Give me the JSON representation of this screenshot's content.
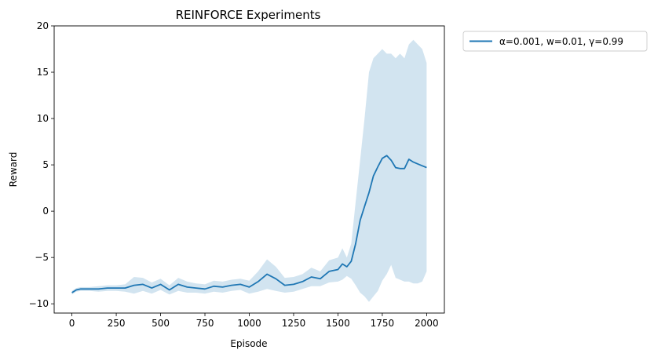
{
  "chart_data": {
    "type": "line",
    "title": "REINFORCE Experiments",
    "xlabel": "Episode",
    "ylabel": "Reward",
    "xlim": [
      -100,
      2100
    ],
    "ylim": [
      -11,
      20
    ],
    "xticks": [
      0,
      250,
      500,
      750,
      1000,
      1250,
      1500,
      1750,
      2000
    ],
    "yticks": [
      -10,
      -5,
      0,
      5,
      10,
      15,
      20
    ],
    "xtick_labels": [
      "0",
      "250",
      "500",
      "750",
      "1000",
      "1250",
      "1500",
      "1750",
      "2000"
    ],
    "ytick_labels": [
      "−10",
      "−5",
      "0",
      "5",
      "10",
      "15",
      "20"
    ],
    "legend_placement": "outside-top-right",
    "colors": {
      "line": "#1f77b4",
      "band": "#1f77b4"
    },
    "series": [
      {
        "name": "α=0.001, w=0.01, γ=0.99",
        "x": [
          0,
          25,
          50,
          100,
          150,
          200,
          250,
          300,
          350,
          400,
          450,
          500,
          550,
          600,
          650,
          700,
          750,
          800,
          850,
          900,
          950,
          1000,
          1050,
          1100,
          1150,
          1200,
          1250,
          1300,
          1350,
          1400,
          1450,
          1500,
          1525,
          1550,
          1575,
          1600,
          1625,
          1650,
          1675,
          1700,
          1725,
          1750,
          1775,
          1800,
          1825,
          1850,
          1875,
          1900,
          1925,
          1950,
          1975,
          2000
        ],
        "mean": [
          -8.8,
          -8.5,
          -8.4,
          -8.4,
          -8.4,
          -8.3,
          -8.3,
          -8.3,
          -8.0,
          -7.9,
          -8.3,
          -7.9,
          -8.5,
          -7.9,
          -8.2,
          -8.3,
          -8.4,
          -8.1,
          -8.2,
          -8.0,
          -7.9,
          -8.2,
          -7.6,
          -6.8,
          -7.3,
          -8.0,
          -7.9,
          -7.6,
          -7.1,
          -7.3,
          -6.5,
          -6.3,
          -5.7,
          -6.0,
          -5.4,
          -3.5,
          -1.0,
          0.5,
          2.0,
          3.8,
          4.8,
          5.7,
          6.0,
          5.5,
          4.7,
          4.6,
          4.6,
          5.6,
          5.3,
          5.1,
          4.9,
          4.7
        ],
        "upper": [
          -8.6,
          -8.3,
          -8.2,
          -8.2,
          -8.1,
          -8.0,
          -8.0,
          -7.9,
          -7.1,
          -7.2,
          -7.7,
          -7.3,
          -8.0,
          -7.2,
          -7.6,
          -7.8,
          -7.9,
          -7.5,
          -7.6,
          -7.4,
          -7.3,
          -7.5,
          -6.5,
          -5.2,
          -6.0,
          -7.2,
          -7.1,
          -6.8,
          -6.1,
          -6.5,
          -5.3,
          -5.0,
          -4.0,
          -5.0,
          -3.5,
          1.0,
          5.5,
          10.0,
          15.0,
          16.5,
          17.0,
          17.5,
          17.0,
          17.0,
          16.5,
          17.0,
          16.5,
          18.0,
          18.5,
          18.0,
          17.5,
          16.0
        ],
        "lower": [
          -9.0,
          -8.7,
          -8.6,
          -8.6,
          -8.7,
          -8.6,
          -8.6,
          -8.7,
          -8.9,
          -8.6,
          -8.9,
          -8.5,
          -9.0,
          -8.6,
          -8.8,
          -8.8,
          -8.9,
          -8.7,
          -8.8,
          -8.6,
          -8.5,
          -8.9,
          -8.7,
          -8.4,
          -8.6,
          -8.8,
          -8.7,
          -8.4,
          -8.1,
          -8.1,
          -7.7,
          -7.6,
          -7.4,
          -7.0,
          -7.3,
          -8.0,
          -8.8,
          -9.2,
          -9.8,
          -9.2,
          -8.6,
          -7.5,
          -6.8,
          -5.8,
          -7.2,
          -7.4,
          -7.6,
          -7.6,
          -7.8,
          -7.8,
          -7.6,
          -6.5
        ]
      }
    ]
  }
}
